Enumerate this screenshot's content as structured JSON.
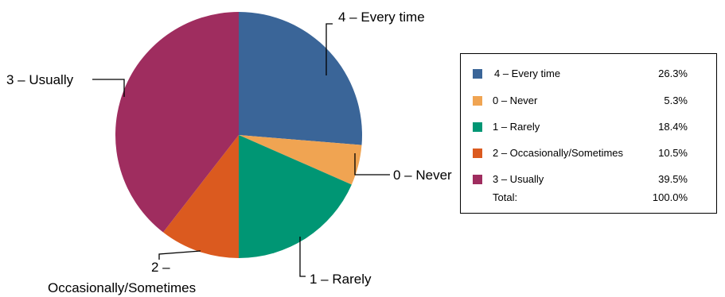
{
  "chart_data": {
    "type": "pie",
    "title": "",
    "slices": [
      {
        "label": "4 – Every time",
        "legend_label": "4 – Every time",
        "value": 26.3,
        "display": "26.3%",
        "color": "#3A6598"
      },
      {
        "label": "0 – Never",
        "legend_label": "0 – Never",
        "value": 5.3,
        "display": "5.3%",
        "color": "#F0A452"
      },
      {
        "label": "1 – Rarely",
        "legend_label": "1 – Rarely",
        "value": 18.4,
        "display": "18.4%",
        "color": "#009674"
      },
      {
        "label": "2 – Occasionally/Sometimes",
        "callout_lines": [
          "2 –",
          "Occasionally/Sometimes"
        ],
        "legend_label": "2 – Occasionally/Sometimes",
        "value": 10.5,
        "display": "10.5%",
        "color": "#DB5A1F"
      },
      {
        "label": "3 – Usually",
        "legend_label": "3 – Usually",
        "value": 39.5,
        "display": "39.5%",
        "color": "#9F2D5F"
      }
    ],
    "legend": {
      "placement": "right",
      "total_label": "Total:",
      "total_value": "100.0%"
    }
  }
}
